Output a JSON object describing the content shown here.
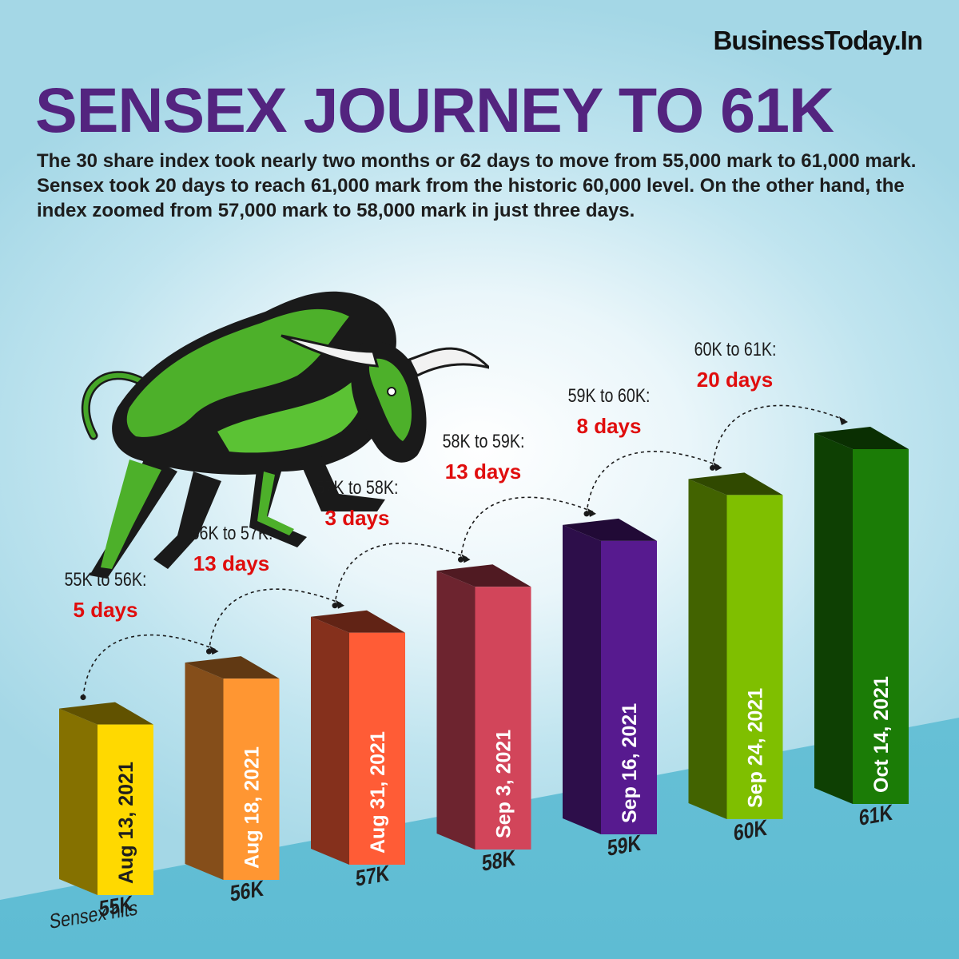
{
  "header": {
    "brand": "BusinessToday.In",
    "title": "SENSEX JOURNEY TO 61K",
    "subtitle": "The 30 share index took nearly two months or 62 days to move from 55,000 mark to 61,000 mark. Sensex took 20 days to reach 61,000 mark from the historic 60,000 level. On the other hand, the index zoomed from 57,000 mark to 58,000 mark in just three days."
  },
  "first_label": "Sensex hits",
  "chart_data": {
    "type": "bar",
    "categories": [
      "Aug 13, 2021",
      "Aug 18, 2021",
      "Aug 31, 2021",
      "Sep 3, 2021",
      "Sep 16, 2021",
      "Sep 24, 2021",
      "Oct 14, 2021"
    ],
    "levels": [
      "55K",
      "56K",
      "57K",
      "58K",
      "59K",
      "60K",
      "61K"
    ],
    "values": [
      55000,
      56000,
      57000,
      58000,
      59000,
      60000,
      61000
    ],
    "colors": [
      "#ffd900",
      "#ff9632",
      "#ff5c36",
      "#d2455a",
      "#571a8f",
      "#7fbf00",
      "#1b7c06"
    ],
    "stages": [
      {
        "range": "55K to 56K:",
        "days": "5 days"
      },
      {
        "range": "56K to 57K:",
        "days": "13 days"
      },
      {
        "range": "57K to 58K:",
        "days": "3 days"
      },
      {
        "range": "58K to 59K:",
        "days": "13 days"
      },
      {
        "range": "59K to 60K:",
        "days": "8 days"
      },
      {
        "range": "60K to 61K:",
        "days": "20 days"
      }
    ]
  },
  "colors": {
    "title": "#53247f",
    "accent_red": "#e00d0d",
    "bull_green": "#4db02a"
  }
}
